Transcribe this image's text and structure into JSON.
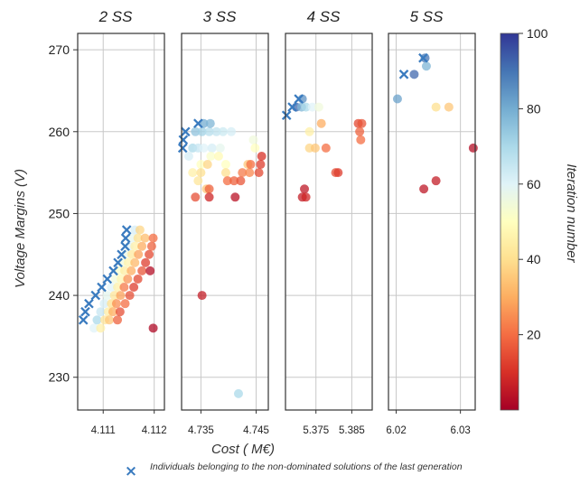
{
  "chart_data": {
    "type": "scatter",
    "xlabel": "Cost ( M€)",
    "ylabel": "Voltage Margins (V)",
    "ylim": [
      226,
      272
    ],
    "yticks": [
      230,
      240,
      250,
      260,
      270
    ],
    "colorbar": {
      "label": "Iteration number",
      "range": [
        0,
        100
      ],
      "ticks": [
        20,
        40,
        60,
        80,
        100
      ],
      "colormap": "RdYlBu"
    },
    "legend": {
      "marker": "×",
      "color": "#3a7bbf",
      "text": "Individuals belonging to the non-dominated solutions of the last generation"
    },
    "panels": [
      {
        "title": "2 SS",
        "xlim": [
          4.1105,
          4.1122
        ],
        "xticks": [
          "4.111",
          "4.112"
        ],
        "xtick_values": [
          4.111,
          4.112
        ],
        "points": [
          {
            "x": 4.11082,
            "y": 236,
            "it": 60
          },
          {
            "x": 4.11088,
            "y": 237,
            "it": 70
          },
          {
            "x": 4.11095,
            "y": 238,
            "it": 65
          },
          {
            "x": 4.11102,
            "y": 239,
            "it": 62
          },
          {
            "x": 4.11108,
            "y": 240,
            "it": 58
          },
          {
            "x": 4.11116,
            "y": 241,
            "it": 60
          },
          {
            "x": 4.11124,
            "y": 242,
            "it": 55
          },
          {
            "x": 4.11131,
            "y": 243,
            "it": 52
          },
          {
            "x": 4.11137,
            "y": 244,
            "it": 55
          },
          {
            "x": 4.11144,
            "y": 245,
            "it": 57
          },
          {
            "x": 4.11151,
            "y": 246,
            "it": 60
          },
          {
            "x": 4.11158,
            "y": 247,
            "it": 58
          },
          {
            "x": 4.11162,
            "y": 248,
            "it": 62
          },
          {
            "x": 4.11095,
            "y": 236,
            "it": 45
          },
          {
            "x": 4.11103,
            "y": 237,
            "it": 42
          },
          {
            "x": 4.1111,
            "y": 238,
            "it": 44
          },
          {
            "x": 4.11116,
            "y": 239,
            "it": 40
          },
          {
            "x": 4.11122,
            "y": 240,
            "it": 42
          },
          {
            "x": 4.11128,
            "y": 241,
            "it": 45
          },
          {
            "x": 4.11135,
            "y": 242,
            "it": 47
          },
          {
            "x": 4.11142,
            "y": 243,
            "it": 44
          },
          {
            "x": 4.11149,
            "y": 244,
            "it": 46
          },
          {
            "x": 4.11156,
            "y": 245,
            "it": 43
          },
          {
            "x": 4.11162,
            "y": 246,
            "it": 45
          },
          {
            "x": 4.11168,
            "y": 247,
            "it": 40
          },
          {
            "x": 4.11172,
            "y": 248,
            "it": 38
          },
          {
            "x": 4.11112,
            "y": 237,
            "it": 35
          },
          {
            "x": 4.11119,
            "y": 238,
            "it": 30
          },
          {
            "x": 4.11126,
            "y": 239,
            "it": 25
          },
          {
            "x": 4.11134,
            "y": 240,
            "it": 28
          },
          {
            "x": 4.11141,
            "y": 241,
            "it": 22
          },
          {
            "x": 4.11148,
            "y": 242,
            "it": 26
          },
          {
            "x": 4.11155,
            "y": 243,
            "it": 30
          },
          {
            "x": 4.11162,
            "y": 244,
            "it": 32
          },
          {
            "x": 4.11169,
            "y": 245,
            "it": 28
          },
          {
            "x": 4.11176,
            "y": 246,
            "it": 30
          },
          {
            "x": 4.11182,
            "y": 247,
            "it": 33
          },
          {
            "x": 4.11128,
            "y": 237,
            "it": 18
          },
          {
            "x": 4.11133,
            "y": 238,
            "it": 15
          },
          {
            "x": 4.11143,
            "y": 239,
            "it": 20
          },
          {
            "x": 4.11152,
            "y": 240,
            "it": 15
          },
          {
            "x": 4.1116,
            "y": 241,
            "it": 12
          },
          {
            "x": 4.11168,
            "y": 242,
            "it": 14
          },
          {
            "x": 4.11176,
            "y": 243,
            "it": 16
          },
          {
            "x": 4.11183,
            "y": 244,
            "it": 12
          },
          {
            "x": 4.1119,
            "y": 245,
            "it": 14
          },
          {
            "x": 4.11195,
            "y": 246,
            "it": 18
          },
          {
            "x": 4.11198,
            "y": 247,
            "it": 20
          },
          {
            "x": 4.11192,
            "y": 243,
            "it": 3
          },
          {
            "x": 4.11198,
            "y": 236,
            "it": 2
          }
        ],
        "front": [
          {
            "x": 4.11061,
            "y": 237
          },
          {
            "x": 4.11065,
            "y": 238
          },
          {
            "x": 4.11072,
            "y": 239
          },
          {
            "x": 4.11085,
            "y": 240
          },
          {
            "x": 4.11097,
            "y": 241
          },
          {
            "x": 4.11108,
            "y": 242
          },
          {
            "x": 4.1112,
            "y": 243
          },
          {
            "x": 4.11129,
            "y": 244
          },
          {
            "x": 4.11136,
            "y": 245
          },
          {
            "x": 4.11143,
            "y": 246
          },
          {
            "x": 4.11144,
            "y": 247
          },
          {
            "x": 4.11146,
            "y": 248
          }
        ]
      },
      {
        "title": "3 SS",
        "xlim": [
          4.7315,
          4.7472
        ],
        "xticks": [
          "4.735",
          "4.745"
        ],
        "xtick_values": [
          4.735,
          4.745
        ],
        "points": [
          {
            "x": 4.7328,
            "y": 257,
            "it": 62
          },
          {
            "x": 4.7335,
            "y": 258,
            "it": 70
          },
          {
            "x": 4.7345,
            "y": 258,
            "it": 65
          },
          {
            "x": 4.7355,
            "y": 258,
            "it": 60
          },
          {
            "x": 4.737,
            "y": 258,
            "it": 62
          },
          {
            "x": 4.7385,
            "y": 258,
            "it": 58
          },
          {
            "x": 4.734,
            "y": 260,
            "it": 75
          },
          {
            "x": 4.7352,
            "y": 260,
            "it": 72
          },
          {
            "x": 4.7365,
            "y": 260,
            "it": 68
          },
          {
            "x": 4.7378,
            "y": 260,
            "it": 66
          },
          {
            "x": 4.739,
            "y": 260,
            "it": 64
          },
          {
            "x": 4.7405,
            "y": 260,
            "it": 62
          },
          {
            "x": 4.7355,
            "y": 261,
            "it": 80
          },
          {
            "x": 4.7367,
            "y": 261,
            "it": 78
          },
          {
            "x": 4.735,
            "y": 256,
            "it": 50
          },
          {
            "x": 4.7368,
            "y": 257,
            "it": 52
          },
          {
            "x": 4.7382,
            "y": 257,
            "it": 48
          },
          {
            "x": 4.7395,
            "y": 256,
            "it": 50
          },
          {
            "x": 4.7445,
            "y": 259,
            "it": 55
          },
          {
            "x": 4.7448,
            "y": 258,
            "it": 50
          },
          {
            "x": 4.7335,
            "y": 255,
            "it": 45
          },
          {
            "x": 4.735,
            "y": 255,
            "it": 40
          },
          {
            "x": 4.7362,
            "y": 256,
            "it": 38
          },
          {
            "x": 4.736,
            "y": 253,
            "it": 35
          },
          {
            "x": 4.7345,
            "y": 254,
            "it": 42
          },
          {
            "x": 4.7395,
            "y": 255,
            "it": 40
          },
          {
            "x": 4.7435,
            "y": 256,
            "it": 35
          },
          {
            "x": 4.734,
            "y": 252,
            "it": 15
          },
          {
            "x": 4.7365,
            "y": 253,
            "it": 18
          },
          {
            "x": 4.7398,
            "y": 254,
            "it": 20
          },
          {
            "x": 4.741,
            "y": 254,
            "it": 18
          },
          {
            "x": 4.7422,
            "y": 254,
            "it": 16
          },
          {
            "x": 4.7425,
            "y": 255,
            "it": 22
          },
          {
            "x": 4.7438,
            "y": 255,
            "it": 24
          },
          {
            "x": 4.744,
            "y": 256,
            "it": 20
          },
          {
            "x": 4.7455,
            "y": 255,
            "it": 14
          },
          {
            "x": 4.7458,
            "y": 256,
            "it": 12
          },
          {
            "x": 4.746,
            "y": 257,
            "it": 10
          },
          {
            "x": 4.7365,
            "y": 252,
            "it": 8
          },
          {
            "x": 4.7352,
            "y": 240,
            "it": 6
          },
          {
            "x": 4.7412,
            "y": 252,
            "it": 4
          },
          {
            "x": 4.7418,
            "y": 228,
            "it": 70
          }
        ],
        "front": [
          {
            "x": 4.7317,
            "y": 258
          },
          {
            "x": 4.7318,
            "y": 259
          },
          {
            "x": 4.7322,
            "y": 260
          },
          {
            "x": 4.7345,
            "y": 261
          }
        ]
      },
      {
        "title": "4 SS",
        "xlim": [
          5.3665,
          5.3907
        ],
        "xticks": [
          "5.375",
          "5.385"
        ],
        "xtick_values": [
          5.375,
          5.385
        ],
        "points": [
          {
            "x": 5.3695,
            "y": 263,
            "it": 92
          },
          {
            "x": 5.3712,
            "y": 264,
            "it": 85
          },
          {
            "x": 5.371,
            "y": 263,
            "it": 78
          },
          {
            "x": 5.3722,
            "y": 263,
            "it": 70
          },
          {
            "x": 5.374,
            "y": 263,
            "it": 60
          },
          {
            "x": 5.3758,
            "y": 263,
            "it": 55
          },
          {
            "x": 5.3765,
            "y": 261,
            "it": 30
          },
          {
            "x": 5.3732,
            "y": 258,
            "it": 38
          },
          {
            "x": 5.3748,
            "y": 258,
            "it": 35
          },
          {
            "x": 5.3778,
            "y": 258,
            "it": 20
          },
          {
            "x": 5.3805,
            "y": 255,
            "it": 15
          },
          {
            "x": 5.3812,
            "y": 255,
            "it": 12
          },
          {
            "x": 5.3868,
            "y": 261,
            "it": 14
          },
          {
            "x": 5.3872,
            "y": 260,
            "it": 18
          },
          {
            "x": 5.3875,
            "y": 259,
            "it": 20
          },
          {
            "x": 5.3878,
            "y": 261,
            "it": 16
          },
          {
            "x": 5.3712,
            "y": 252,
            "it": 6
          },
          {
            "x": 5.3718,
            "y": 253,
            "it": 5
          },
          {
            "x": 5.3722,
            "y": 252,
            "it": 8
          },
          {
            "x": 5.3732,
            "y": 260,
            "it": 45
          }
        ],
        "front": [
          {
            "x": 5.3668,
            "y": 262
          },
          {
            "x": 5.3684,
            "y": 263
          },
          {
            "x": 5.3702,
            "y": 264
          }
        ]
      },
      {
        "title": "5 SS",
        "xlim": [
          6.0188,
          6.0323
        ],
        "xticks": [
          "6.02",
          "6.03"
        ],
        "xtick_values": [
          6.02,
          6.03
        ],
        "points": [
          {
            "x": 6.0202,
            "y": 264,
            "it": 82
          },
          {
            "x": 6.0228,
            "y": 267,
            "it": 92
          },
          {
            "x": 6.0245,
            "y": 269,
            "it": 90
          },
          {
            "x": 6.0247,
            "y": 268,
            "it": 78
          },
          {
            "x": 6.0262,
            "y": 263,
            "it": 40
          },
          {
            "x": 6.0282,
            "y": 263,
            "it": 35
          },
          {
            "x": 6.0243,
            "y": 253,
            "it": 5
          },
          {
            "x": 6.0262,
            "y": 254,
            "it": 6
          },
          {
            "x": 6.032,
            "y": 258,
            "it": 3
          }
        ],
        "front": [
          {
            "x": 6.0212,
            "y": 267
          },
          {
            "x": 6.0242,
            "y": 269
          }
        ]
      }
    ]
  }
}
